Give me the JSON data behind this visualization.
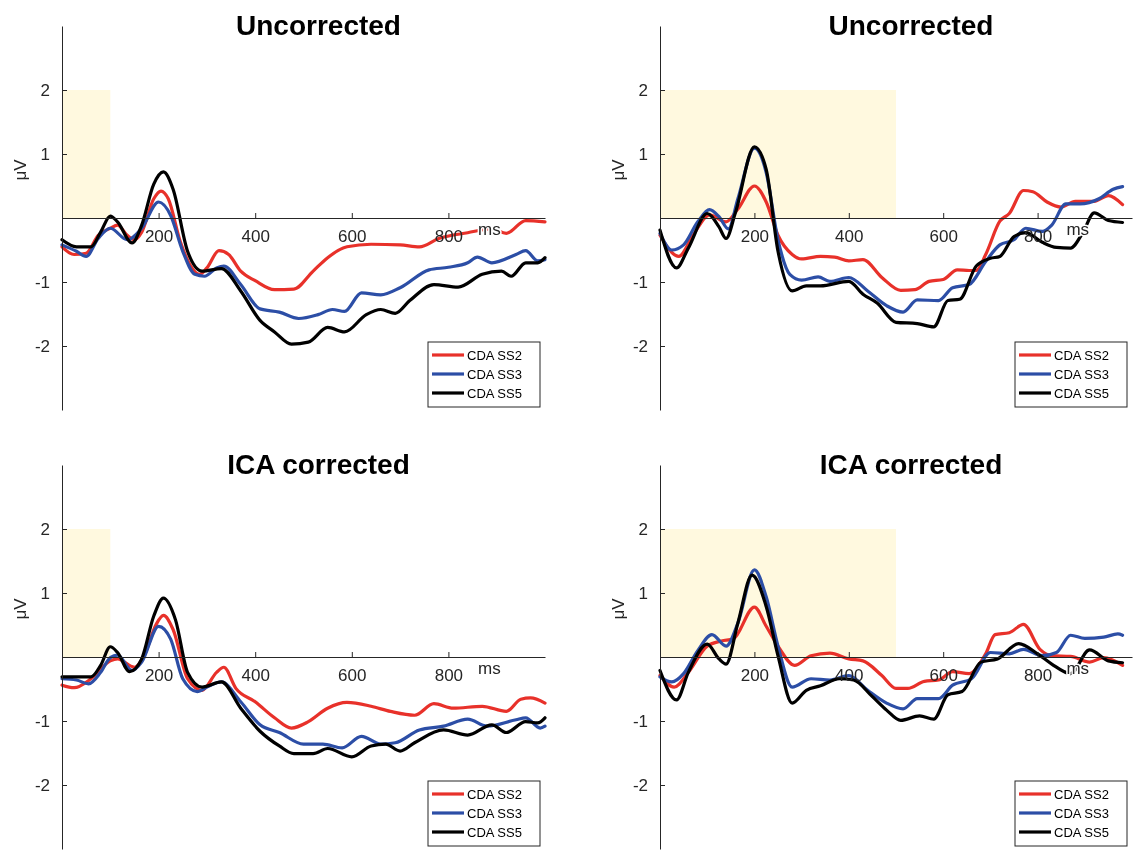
{
  "chart_data": [
    {
      "type": "line",
      "title": "Uncorrected",
      "xlabel": "ms",
      "ylabel": "μV",
      "xlim": [
        0,
        1000
      ],
      "ylim": [
        -3,
        3
      ],
      "xticks": [
        200,
        400,
        600,
        800
      ],
      "yticks": [
        -2,
        -1,
        1,
        2
      ],
      "grid": false,
      "legend": "bottom right",
      "line_style": "solid",
      "bands": [
        {
          "axis": "x",
          "from": 0,
          "to": 100,
          "color": "#fff9df"
        }
      ],
      "series": [
        {
          "name": "CDA SS2",
          "color": "#e8312a",
          "x": [
            0,
            25,
            50,
            75,
            100,
            115,
            135,
            150,
            165,
            190,
            205,
            220,
            245,
            265,
            285,
            300,
            325,
            345,
            370,
            400,
            440,
            480,
            520,
            550,
            590,
            640,
            700,
            740,
            780,
            840,
            890,
            920,
            960,
            1000
          ],
          "values": [
            -0.45,
            -0.57,
            -0.55,
            -0.27,
            -0.16,
            -0.11,
            -0.27,
            -0.34,
            -0.22,
            0.3,
            0.42,
            0.3,
            -0.37,
            -0.73,
            -0.88,
            -0.78,
            -0.51,
            -0.57,
            -0.83,
            -0.98,
            -1.12,
            -1.11,
            -0.83,
            -0.62,
            -0.45,
            -0.41,
            -0.42,
            -0.45,
            -0.32,
            -0.23,
            -0.17,
            -0.24,
            -0.04,
            -0.06
          ]
        },
        {
          "name": "CDA SS3",
          "color": "#2c4ea6",
          "x": [
            0,
            30,
            50,
            75,
            100,
            135,
            165,
            200,
            225,
            250,
            275,
            295,
            320,
            335,
            370,
            410,
            450,
            490,
            530,
            560,
            585,
            620,
            660,
            700,
            760,
            800,
            840,
            860,
            890,
            940,
            960,
            985,
            1000
          ],
          "values": [
            -0.42,
            -0.52,
            -0.6,
            -0.32,
            -0.16,
            -0.34,
            -0.16,
            0.25,
            0.04,
            -0.52,
            -0.88,
            -0.91,
            -0.78,
            -0.75,
            -1.04,
            -1.42,
            -1.47,
            -1.57,
            -1.51,
            -1.43,
            -1.46,
            -1.17,
            -1.2,
            -1.09,
            -0.81,
            -0.77,
            -0.7,
            -0.61,
            -0.7,
            -0.57,
            -0.51,
            -0.67,
            -0.65
          ]
        },
        {
          "name": "CDA SS5",
          "color": "#000000",
          "x": [
            0,
            30,
            60,
            80,
            100,
            115,
            145,
            165,
            190,
            210,
            230,
            260,
            290,
            330,
            370,
            410,
            440,
            475,
            510,
            550,
            585,
            630,
            660,
            690,
            720,
            770,
            820,
            870,
            910,
            930,
            960,
            985,
            1000
          ],
          "values": [
            -0.34,
            -0.45,
            -0.45,
            -0.22,
            0.03,
            -0.06,
            -0.39,
            -0.11,
            0.53,
            0.72,
            0.45,
            -0.52,
            -0.83,
            -0.79,
            -1.14,
            -1.6,
            -1.78,
            -1.97,
            -1.94,
            -1.71,
            -1.78,
            -1.51,
            -1.43,
            -1.49,
            -1.29,
            -1.04,
            -1.08,
            -0.88,
            -0.83,
            -0.91,
            -0.7,
            -0.7,
            -0.62
          ]
        }
      ]
    },
    {
      "type": "line",
      "title": "Uncorrected",
      "xlabel": "ms",
      "ylabel": "μV",
      "xlim": [
        0,
        1000
      ],
      "ylim": [
        -3,
        3
      ],
      "xticks": [
        200,
        400,
        600,
        800
      ],
      "yticks": [
        -2,
        -1,
        1,
        2
      ],
      "grid": false,
      "legend": "bottom right",
      "line_style": "solid",
      "bands": [
        {
          "axis": "x",
          "from": 0,
          "to": 500,
          "color": "#fff9df"
        }
      ],
      "series": [
        {
          "name": "CDA SS2",
          "color": "#e8312a",
          "x": [
            0,
            40,
            70,
            105,
            140,
            165,
            200,
            225,
            250,
            280,
            300,
            340,
            370,
            400,
            430,
            470,
            510,
            540,
            570,
            600,
            630,
            655,
            670,
            690,
            720,
            740,
            770,
            790,
            820,
            850,
            880,
            920,
            950,
            980
          ],
          "values": [
            -0.27,
            -0.6,
            -0.27,
            0.05,
            -0.06,
            0.14,
            0.5,
            0.25,
            -0.27,
            -0.57,
            -0.64,
            -0.6,
            -0.61,
            -0.67,
            -0.65,
            -0.93,
            -1.13,
            -1.12,
            -0.99,
            -0.96,
            -0.81,
            -0.82,
            -0.82,
            -0.57,
            -0.05,
            0.07,
            0.43,
            0.41,
            0.25,
            0.17,
            0.26,
            0.26,
            0.35,
            0.21
          ]
        },
        {
          "name": "CDA SS3",
          "color": "#2c4ea6",
          "x": [
            0,
            25,
            50,
            80,
            105,
            125,
            145,
            165,
            200,
            225,
            250,
            275,
            300,
            335,
            360,
            400,
            440,
            480,
            515,
            545,
            590,
            620,
            655,
            690,
            720,
            750,
            775,
            810,
            830,
            860,
            890,
            930,
            960,
            980
          ],
          "values": [
            -0.24,
            -0.5,
            -0.42,
            -0.06,
            0.13,
            0.02,
            -0.17,
            0.3,
            1.09,
            0.71,
            -0.34,
            -0.88,
            -0.97,
            -0.92,
            -0.99,
            -0.93,
            -1.14,
            -1.37,
            -1.47,
            -1.28,
            -1.29,
            -1.09,
            -1.04,
            -0.68,
            -0.42,
            -0.34,
            -0.16,
            -0.21,
            -0.11,
            0.22,
            0.22,
            0.3,
            0.45,
            0.49
          ]
        },
        {
          "name": "CDA SS5",
          "color": "#000000",
          "x": [
            0,
            35,
            60,
            100,
            125,
            140,
            160,
            200,
            225,
            250,
            280,
            310,
            340,
            400,
            430,
            460,
            500,
            545,
            580,
            610,
            635,
            670,
            700,
            720,
            750,
            775,
            810,
            840,
            870,
            895,
            920,
            950,
            980
          ],
          "values": [
            -0.19,
            -0.78,
            -0.47,
            0.07,
            -0.14,
            -0.32,
            0.09,
            1.11,
            0.76,
            -0.52,
            -1.14,
            -1.06,
            -1.06,
            -0.99,
            -1.19,
            -1.33,
            -1.63,
            -1.65,
            -1.7,
            -1.29,
            -1.27,
            -0.75,
            -0.63,
            -0.6,
            -0.29,
            -0.23,
            -0.38,
            -0.46,
            -0.47,
            -0.24,
            0.08,
            -0.04,
            -0.07
          ]
        }
      ]
    },
    {
      "type": "line",
      "title": "ICA corrected",
      "xlabel": "ms",
      "ylabel": "μV",
      "xlim": [
        0,
        1000
      ],
      "ylim": [
        -3,
        3
      ],
      "xticks": [
        200,
        400,
        600,
        800
      ],
      "yticks": [
        -2,
        -1,
        1,
        2
      ],
      "grid": false,
      "legend": "bottom right",
      "line_style": "solid",
      "bands": [
        {
          "axis": "x",
          "from": 0,
          "to": 100,
          "color": "#fff9df"
        }
      ],
      "series": [
        {
          "name": "CDA SS2",
          "color": "#e8312a",
          "x": [
            0,
            25,
            60,
            100,
            115,
            150,
            170,
            195,
            210,
            230,
            260,
            290,
            320,
            335,
            360,
            400,
            440,
            475,
            510,
            550,
            590,
            640,
            680,
            730,
            770,
            810,
            870,
            920,
            950,
            970,
            1000
          ],
          "values": [
            -0.44,
            -0.48,
            -0.34,
            -0.06,
            -0.03,
            -0.16,
            0.02,
            0.51,
            0.65,
            0.43,
            -0.34,
            -0.52,
            -0.24,
            -0.16,
            -0.49,
            -0.7,
            -0.95,
            -1.11,
            -1.01,
            -0.8,
            -0.71,
            -0.77,
            -0.85,
            -0.91,
            -0.73,
            -0.8,
            -0.77,
            -0.85,
            -0.66,
            -0.64,
            -0.72
          ]
        },
        {
          "name": "CDA SS3",
          "color": "#2c4ea6",
          "x": [
            0,
            30,
            55,
            80,
            100,
            115,
            145,
            165,
            200,
            225,
            250,
            280,
            300,
            330,
            370,
            410,
            450,
            500,
            540,
            580,
            620,
            660,
            690,
            740,
            790,
            840,
            880,
            940,
            960,
            990,
            1000
          ],
          "values": [
            -0.34,
            -0.36,
            -0.42,
            -0.24,
            -0.01,
            0.03,
            -0.21,
            -0.08,
            0.48,
            0.28,
            -0.34,
            -0.54,
            -0.47,
            -0.39,
            -0.7,
            -1.06,
            -1.18,
            -1.36,
            -1.36,
            -1.42,
            -1.24,
            -1.36,
            -1.34,
            -1.14,
            -1.08,
            -0.97,
            -1.08,
            -0.98,
            -0.95,
            -1.11,
            -1.08
          ]
        },
        {
          "name": "CDA SS5",
          "color": "#000000",
          "x": [
            0,
            60,
            80,
            100,
            115,
            140,
            165,
            190,
            210,
            235,
            260,
            290,
            330,
            370,
            410,
            450,
            480,
            520,
            550,
            600,
            640,
            670,
            700,
            730,
            790,
            840,
            890,
            920,
            960,
            985,
            1000
          ],
          "values": [
            -0.31,
            -0.31,
            -0.13,
            0.16,
            0.07,
            -0.23,
            -0.03,
            0.64,
            0.92,
            0.58,
            -0.24,
            -0.47,
            -0.39,
            -0.8,
            -1.16,
            -1.39,
            -1.51,
            -1.51,
            -1.43,
            -1.56,
            -1.39,
            -1.36,
            -1.47,
            -1.34,
            -1.14,
            -1.22,
            -1.06,
            -1.18,
            -1.01,
            -1.03,
            -0.95
          ]
        }
      ]
    },
    {
      "type": "line",
      "title": "ICA corrected",
      "xlabel": "ms",
      "ylabel": "μV",
      "xlim": [
        0,
        1000
      ],
      "ylim": [
        -3,
        3
      ],
      "xticks": [
        200,
        400,
        600,
        800
      ],
      "yticks": [
        -2,
        -1,
        1,
        2
      ],
      "grid": false,
      "legend": "bottom right",
      "line_style": "solid",
      "bands": [
        {
          "axis": "x",
          "from": 0,
          "to": 500,
          "color": "#fff9df"
        }
      ],
      "series": [
        {
          "name": "CDA SS2",
          "color": "#e8312a",
          "x": [
            0,
            30,
            60,
            100,
            130,
            155,
            200,
            225,
            250,
            285,
            320,
            360,
            400,
            430,
            470,
            500,
            525,
            560,
            590,
            620,
            655,
            690,
            710,
            740,
            770,
            805,
            830,
            870,
            910,
            940,
            980
          ],
          "values": [
            -0.29,
            -0.47,
            -0.24,
            0.17,
            0.25,
            0.28,
            0.78,
            0.48,
            0.17,
            -0.13,
            0.02,
            0.06,
            -0.03,
            -0.06,
            -0.29,
            -0.49,
            -0.49,
            -0.38,
            -0.36,
            -0.23,
            -0.26,
            0.05,
            0.35,
            0.38,
            0.51,
            0.12,
            0.02,
            0.01,
            -0.08,
            -0.01,
            -0.13
          ]
        },
        {
          "name": "CDA SS3",
          "color": "#2c4ea6",
          "x": [
            0,
            25,
            50,
            80,
            110,
            140,
            165,
            200,
            225,
            250,
            280,
            320,
            360,
            400,
            440,
            480,
            515,
            545,
            590,
            620,
            660,
            700,
            740,
            770,
            810,
            840,
            870,
            900,
            940,
            970,
            980
          ],
          "values": [
            -0.31,
            -0.39,
            -0.26,
            0.1,
            0.35,
            0.17,
            0.53,
            1.36,
            0.94,
            0.17,
            -0.47,
            -0.34,
            -0.36,
            -0.29,
            -0.52,
            -0.72,
            -0.81,
            -0.65,
            -0.65,
            -0.44,
            -0.34,
            0.07,
            0.05,
            0.12,
            0.02,
            0.07,
            0.34,
            0.29,
            0.31,
            0.36,
            0.34
          ]
        },
        {
          "name": "CDA SS5",
          "color": "#000000",
          "x": [
            0,
            35,
            60,
            100,
            125,
            140,
            165,
            195,
            225,
            250,
            280,
            310,
            340,
            380,
            410,
            450,
            480,
            510,
            550,
            580,
            610,
            640,
            680,
            715,
            760,
            800,
            830,
            870,
            910,
            950,
            980
          ],
          "values": [
            -0.21,
            -0.67,
            -0.24,
            0.2,
            -0.03,
            -0.11,
            0.53,
            1.28,
            0.79,
            0.02,
            -0.72,
            -0.52,
            -0.45,
            -0.34,
            -0.36,
            -0.62,
            -0.83,
            -0.99,
            -0.92,
            -0.97,
            -0.59,
            -0.54,
            -0.08,
            -0.03,
            0.21,
            0.05,
            -0.11,
            -0.26,
            0.11,
            -0.06,
            -0.09
          ]
        }
      ]
    }
  ]
}
